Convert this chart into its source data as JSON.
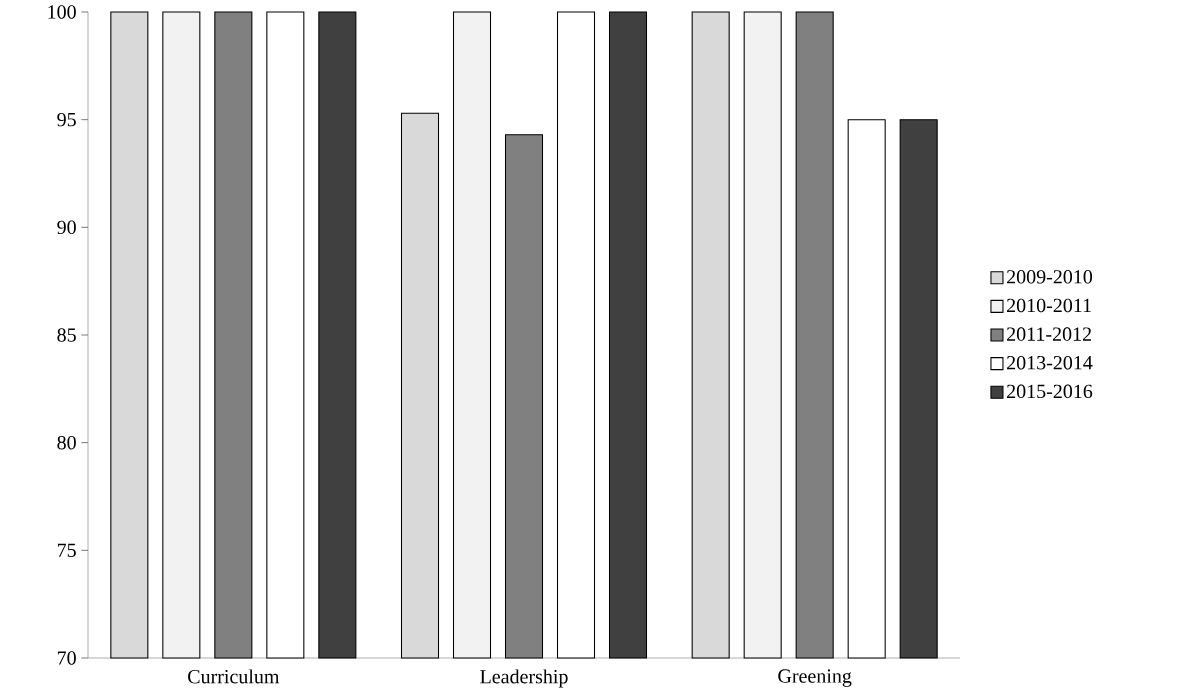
{
  "chart_data": {
    "type": "bar",
    "categories": [
      "Curriculum",
      "Leadership",
      "Greening"
    ],
    "series": [
      {
        "name": "2009-2010",
        "color": "#d9d9d9",
        "values": [
          100,
          95.3,
          100
        ]
      },
      {
        "name": "2010-2011",
        "color": "#f2f2f2",
        "values": [
          100,
          100,
          100
        ]
      },
      {
        "name": "2011-2012",
        "color": "#808080",
        "values": [
          100,
          94.3,
          100
        ]
      },
      {
        "name": "2013-2014",
        "color": "#ffffff",
        "values": [
          100,
          100,
          95
        ]
      },
      {
        "name": "2015-2016",
        "color": "#404040",
        "values": [
          100,
          100,
          95
        ]
      }
    ],
    "ylim": [
      70,
      100
    ],
    "yticks": [
      70,
      75,
      80,
      85,
      90,
      95,
      100
    ],
    "grid": false,
    "legend": "right"
  }
}
